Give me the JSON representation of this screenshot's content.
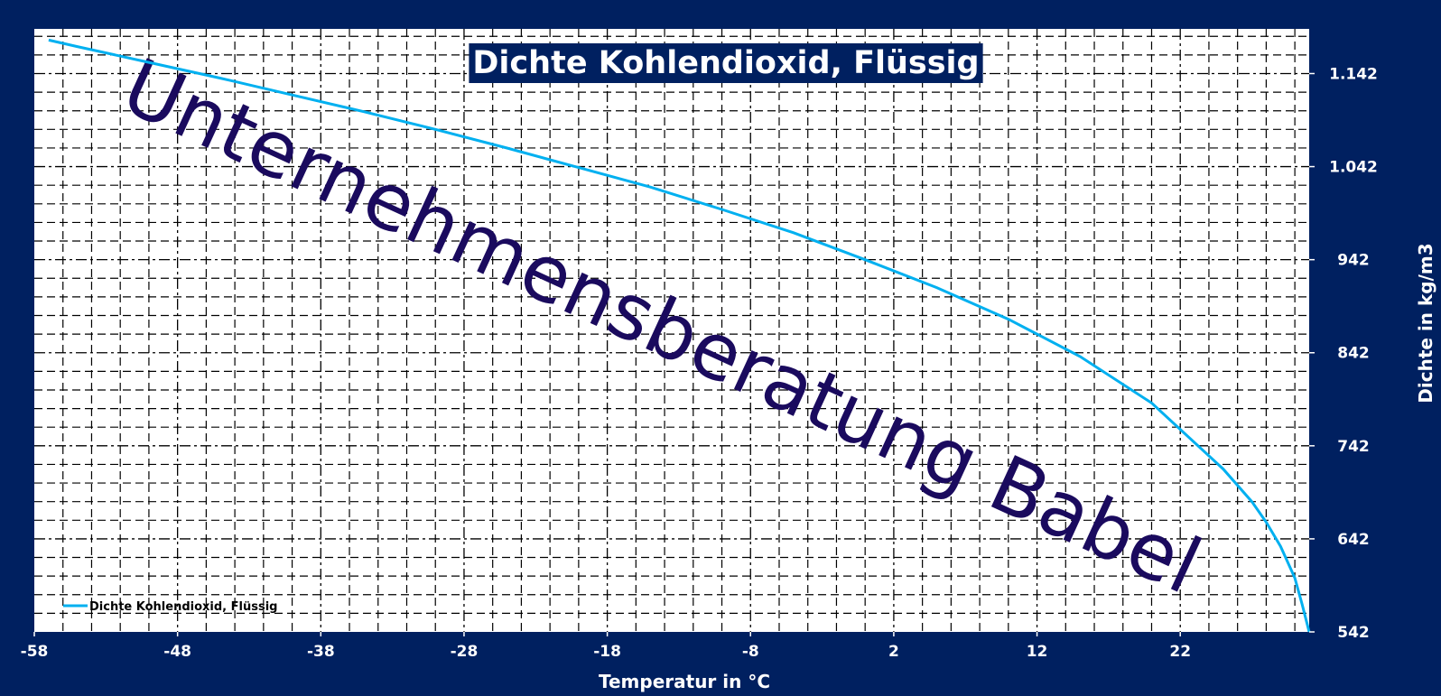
{
  "chart_data": {
    "type": "line",
    "title": "Dichte Kohlendioxid, Flüssig",
    "xlabel": "Temperatur  in °C",
    "ylabel": "Dichte in kg/m3",
    "xlim": [
      -58,
      31
    ],
    "ylim": [
      542,
      1190
    ],
    "x_ticks": [
      -58,
      -48,
      -38,
      -28,
      -18,
      -8,
      2,
      12,
      22
    ],
    "y_ticks": [
      542,
      642,
      742,
      842,
      942,
      1042,
      1142
    ],
    "y_tick_labels": [
      "542",
      "642",
      "742",
      "842",
      "942",
      "1.042",
      "1.142"
    ],
    "x_minor_step": 2,
    "y_minor_step": 20,
    "grid": true,
    "y_axis_position": "right",
    "legend_position": "bottom-left",
    "series": [
      {
        "name": "Dichte Kohlendioxid, Flüssig",
        "color": "#00b0f0",
        "x": [
          -57,
          -55,
          -50,
          -45,
          -40,
          -35,
          -30,
          -25,
          -20,
          -15,
          -10,
          -5,
          0,
          5,
          10,
          15,
          20,
          25,
          27,
          28,
          29,
          30,
          30.5,
          31
        ],
        "y": [
          1178,
          1171,
          1154,
          1137,
          1119,
          1101,
          1082,
          1062,
          1041,
          1020,
          996,
          971,
          942,
          912,
          878,
          838,
          788,
          717,
          682,
          660,
          634,
          600,
          572,
          542
        ]
      }
    ],
    "watermark": "Unternehmensberatung Babel"
  }
}
